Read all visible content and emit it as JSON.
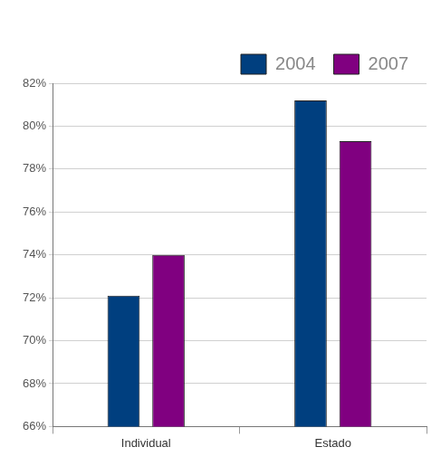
{
  "chart_data": {
    "type": "bar",
    "categories": [
      "Individual",
      "Estado"
    ],
    "series": [
      {
        "name": "2004",
        "color": "#003f7f",
        "values": [
          72.1,
          81.2
        ]
      },
      {
        "name": "2007",
        "color": "#800080",
        "values": [
          74.0,
          79.3
        ]
      }
    ],
    "ylim": [
      66,
      82
    ],
    "yticks": [
      {
        "value": 66,
        "label": "66%"
      },
      {
        "value": 68,
        "label": "68%"
      },
      {
        "value": 70,
        "label": "70%"
      },
      {
        "value": 72,
        "label": "72%"
      },
      {
        "value": 74,
        "label": "74%"
      },
      {
        "value": 76,
        "label": "76%"
      },
      {
        "value": 78,
        "label": "78%"
      },
      {
        "value": 80,
        "label": "80%"
      },
      {
        "value": 82,
        "label": "82%"
      }
    ],
    "grid": true,
    "legend": "upper right"
  }
}
